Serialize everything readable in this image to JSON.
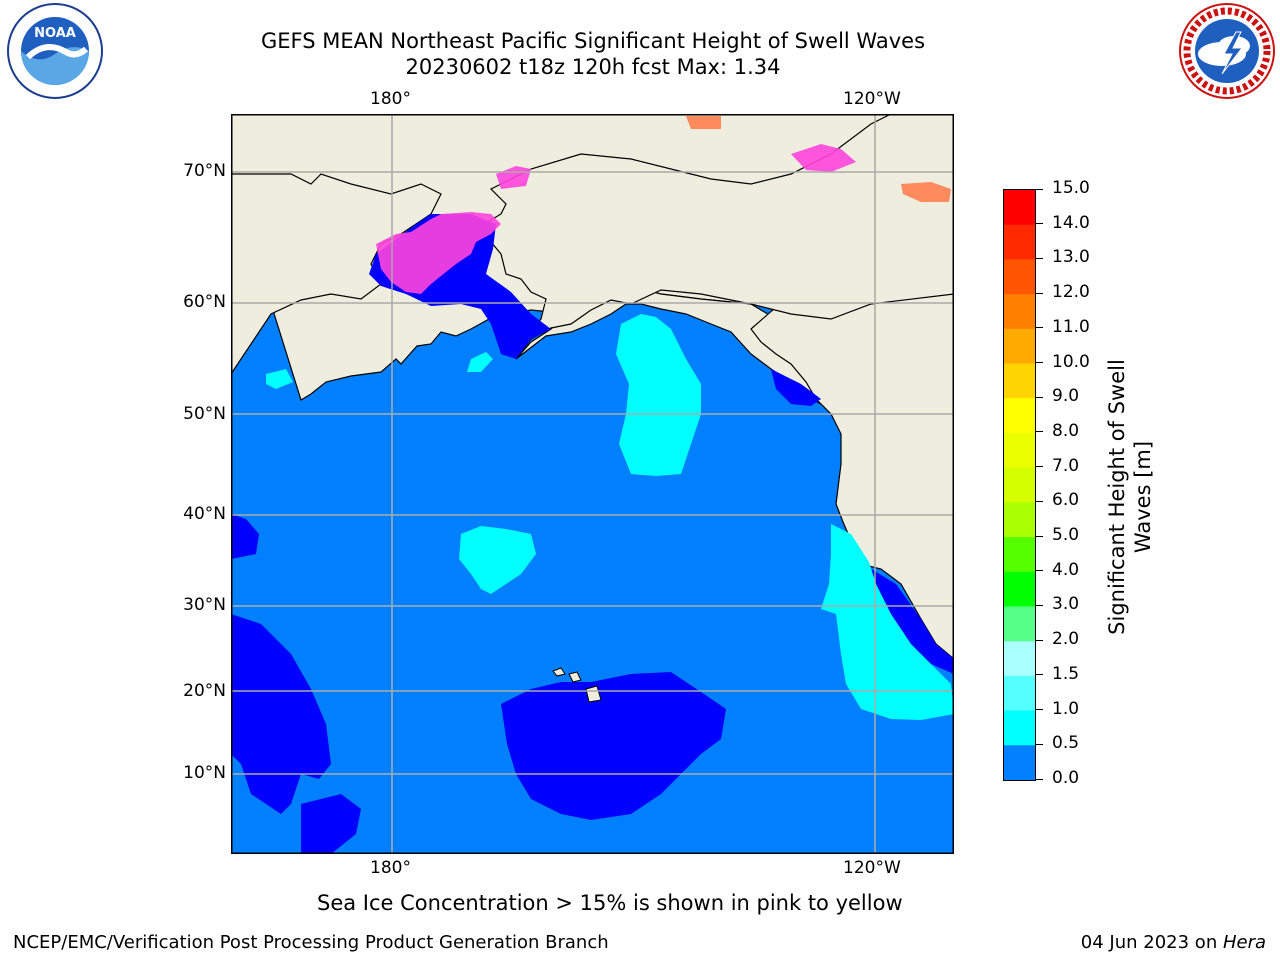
{
  "header": {
    "title_line1": "GEFS MEAN Northeast Pacific Significant Height of Swell Waves",
    "title_line2": "20230602 t18z 120h fcst   Max: 1.34"
  },
  "logos": {
    "noaa_text": "NOAA",
    "noaa_ring": "NATIONAL OCEANIC AND ATMOSPHERIC ADMINISTRATION · U.S. DEPARTMENT OF COMMERCE",
    "nws_ring": "NATIONAL WEATHER SERVICE"
  },
  "map": {
    "top_lon_labels": [
      "180°",
      "120°W"
    ],
    "bottom_lon_labels": [
      "180°",
      "120°W"
    ],
    "lat_labels": [
      "70°N",
      "60°N",
      "50°N",
      "40°N",
      "30°N",
      "20°N",
      "10°N"
    ],
    "colors": {
      "land": "#efedde",
      "ocean_0_0_5": "#0000ff",
      "ocean_0_5_1_0": "#0080ff",
      "ocean_1_0_1_5": "#00ffff",
      "ice": "#ff44dd"
    }
  },
  "colorbar": {
    "ticks": [
      "15.0",
      "14.0",
      "13.0",
      "12.0",
      "11.0",
      "10.0",
      "9.0",
      "8.0",
      "7.0",
      "6.0",
      "5.0",
      "4.0",
      "3.0",
      "2.0",
      "1.5",
      "1.0",
      "0.5",
      "0.0"
    ],
    "colors": [
      "#ff0000",
      "#ff2a00",
      "#ff5500",
      "#ff8000",
      "#ffaa00",
      "#ffd400",
      "#ffff00",
      "#eaff00",
      "#d4ff00",
      "#aaff00",
      "#55ff00",
      "#00ff00",
      "#55ff88",
      "#aaffff",
      "#55ffff",
      "#00ffff",
      "#0080ff",
      "#0000ff"
    ],
    "label": "Significant Height of Swell\nWaves [m]"
  },
  "notes": {
    "sea_ice": "Sea Ice Concentration > 15% is shown in pink to yellow"
  },
  "footer": {
    "left": "NCEP/EMC/Verification Post Processing Product Generation Branch",
    "right_date": "04 Jun 2023 on ",
    "right_host": "Hera"
  }
}
